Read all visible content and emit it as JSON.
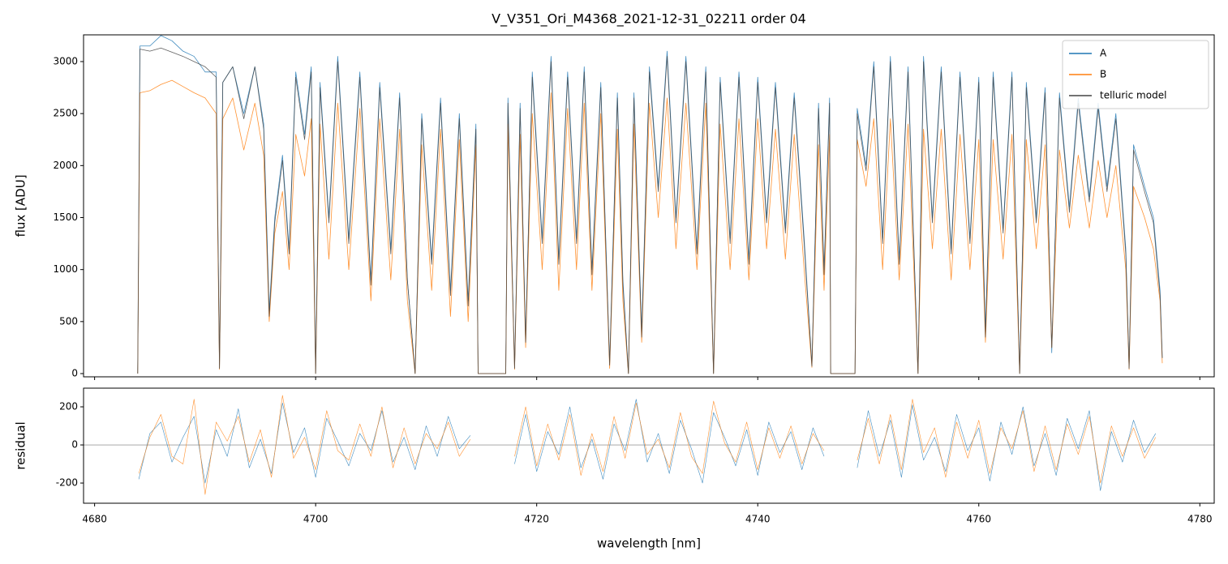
{
  "chart_data": [
    {
      "type": "line",
      "title": "V_V351_Ori_M4368_2021-12-31_02211  order 04",
      "ylabel": "flux [ADU]",
      "legend": "upper right",
      "xlim": [
        4679,
        4781.3
      ],
      "ylim": [
        -31,
        3257
      ],
      "yticks": [
        0,
        500,
        1000,
        1500,
        2000,
        2500,
        3000
      ],
      "x": [
        4683.9,
        4684.1,
        4685.0,
        4686.0,
        4687.0,
        4688.0,
        4689.0,
        4690.0,
        4691.0,
        4691.3,
        4691.6,
        4692.5,
        4693.5,
        4694.5,
        4695.3,
        4695.8,
        4696.3,
        4697.0,
        4697.6,
        4698.2,
        4699.0,
        4699.6,
        4700.0,
        4700.4,
        4701.2,
        4702.0,
        4703.0,
        4704.0,
        4705.0,
        4705.8,
        4706.8,
        4707.6,
        4708.3,
        4709.0,
        4709.6,
        4710.5,
        4711.3,
        4712.2,
        4713.0,
        4713.8,
        4714.5,
        4714.7,
        4717.2,
        4717.4,
        4718.0,
        4718.5,
        4719.0,
        4719.6,
        4720.5,
        4721.3,
        4722.0,
        4722.8,
        4723.6,
        4724.3,
        4725.0,
        4725.8,
        4726.6,
        4727.3,
        4727.8,
        4728.3,
        4728.8,
        4729.5,
        4730.2,
        4731.0,
        4731.8,
        4732.6,
        4733.5,
        4734.5,
        4735.3,
        4736.0,
        4736.6,
        4737.5,
        4738.3,
        4739.2,
        4740.0,
        4740.8,
        4741.6,
        4742.5,
        4743.3,
        4744.2,
        4744.9,
        4745.5,
        4746.0,
        4746.5,
        4746.6,
        4748.8,
        4749.0,
        4749.8,
        4750.5,
        4751.3,
        4752.0,
        4752.8,
        4753.6,
        4754.5,
        4755.0,
        4755.8,
        4756.6,
        4757.5,
        4758.3,
        4759.2,
        4760.0,
        4760.6,
        4761.3,
        4762.2,
        4763.0,
        4763.7,
        4764.3,
        4765.2,
        4766.0,
        4766.6,
        4767.3,
        4768.2,
        4769.0,
        4770.0,
        4770.8,
        4771.6,
        4772.4,
        4773.3,
        4773.6,
        4774.0,
        4775.0,
        4775.8,
        4776.4,
        4776.6
      ],
      "series": [
        {
          "name": "A",
          "color": "#1f77b4",
          "values": [
            0,
            3150,
            3150,
            3250,
            3200,
            3100,
            3050,
            2900,
            2900,
            50,
            2800,
            2950,
            2500,
            2950,
            2400,
            600,
            1500,
            2100,
            1200,
            2900,
            2300,
            2950,
            0,
            2800,
            1500,
            3050,
            1300,
            2900,
            900,
            2800,
            1200,
            2700,
            900,
            0,
            2500,
            1100,
            2650,
            800,
            2500,
            700,
            2400,
            0,
            0,
            2650,
            50,
            2600,
            300,
            2900,
            1300,
            3050,
            1100,
            2900,
            1300,
            2950,
            1000,
            2800,
            100,
            2700,
            900,
            0,
            2700,
            400,
            2950,
            1800,
            3100,
            1500,
            3050,
            1200,
            2950,
            0,
            2850,
            1300,
            2900,
            1100,
            2850,
            1500,
            2800,
            1400,
            2700,
            1300,
            80,
            2600,
            1000,
            2650,
            0,
            0,
            2550,
            2000,
            3000,
            1300,
            3050,
            1100,
            2950,
            0,
            3050,
            1500,
            2950,
            1200,
            2900,
            1300,
            2850,
            400,
            2900,
            1400,
            2900,
            0,
            2800,
            1500,
            2750,
            200,
            2700,
            1600,
            2650,
            1700,
            2600,
            1800,
            2500,
            1200,
            50,
            2200,
            1800,
            1500,
            800,
            150
          ]
        },
        {
          "name": "B",
          "color": "#ff7f0e",
          "values": [
            0,
            2700,
            2720,
            2780,
            2820,
            2760,
            2700,
            2650,
            2500,
            40,
            2450,
            2650,
            2150,
            2600,
            2100,
            500,
            1350,
            1750,
            1000,
            2300,
            1900,
            2450,
            0,
            2400,
            1100,
            2600,
            1000,
            2550,
            700,
            2450,
            900,
            2350,
            700,
            0,
            2200,
            800,
            2350,
            550,
            2250,
            500,
            2200,
            0,
            0,
            2400,
            40,
            2300,
            250,
            2500,
            1000,
            2700,
            800,
            2550,
            1000,
            2600,
            800,
            2500,
            50,
            2350,
            700,
            0,
            2400,
            300,
            2600,
            1500,
            2650,
            1200,
            2600,
            1000,
            2600,
            0,
            2400,
            1000,
            2450,
            900,
            2450,
            1200,
            2350,
            1100,
            2300,
            1000,
            60,
            2200,
            800,
            2300,
            0,
            0,
            2250,
            1800,
            2450,
            1000,
            2450,
            900,
            2400,
            0,
            2350,
            1200,
            2350,
            900,
            2300,
            1000,
            2250,
            300,
            2250,
            1100,
            2300,
            0,
            2250,
            1200,
            2200,
            250,
            2150,
            1400,
            2100,
            1400,
            2050,
            1500,
            2000,
            1000,
            40,
            1800,
            1500,
            1200,
            700,
            100
          ]
        },
        {
          "name": "telluric model",
          "color": "#444444",
          "values": [
            0,
            3120,
            3100,
            3130,
            3090,
            3050,
            3000,
            2950,
            2850,
            50,
            2800,
            2950,
            2450,
            2950,
            2350,
            550,
            1450,
            2050,
            1150,
            2850,
            2250,
            2900,
            0,
            2750,
            1450,
            3000,
            1250,
            2850,
            850,
            2750,
            1150,
            2650,
            900,
            0,
            2450,
            1050,
            2600,
            750,
            2450,
            650,
            2350,
            0,
            0,
            2600,
            50,
            2550,
            300,
            2850,
            1250,
            3000,
            1050,
            2850,
            1250,
            2900,
            950,
            2750,
            80,
            2650,
            850,
            0,
            2650,
            350,
            2900,
            1750,
            3050,
            1450,
            3000,
            1150,
            2900,
            0,
            2800,
            1250,
            2850,
            1050,
            2800,
            1450,
            2750,
            1350,
            2650,
            1250,
            70,
            2550,
            950,
            2600,
            0,
            0,
            2500,
            1950,
            2950,
            1250,
            3000,
            1050,
            2900,
            0,
            3000,
            1450,
            2900,
            1150,
            2850,
            1250,
            2800,
            350,
            2850,
            1350,
            2850,
            0,
            2750,
            1450,
            2700,
            250,
            2650,
            1550,
            2600,
            1650,
            2550,
            1750,
            2450,
            1150,
            50,
            2150,
            1750,
            1450,
            750,
            150
          ]
        }
      ]
    },
    {
      "type": "line",
      "ylabel": "residual",
      "xlabel": "wavelength [nm]",
      "reference_line": 0,
      "xlim": [
        4679,
        4781.3
      ],
      "ylim": [
        -306,
        298
      ],
      "yticks": [
        -200,
        0,
        200
      ],
      "xticks": [
        4680,
        4700,
        4720,
        4740,
        4760,
        4780
      ],
      "x": [
        4684,
        4685,
        4686,
        4687,
        4688,
        4689,
        4690,
        4691,
        4692,
        4693,
        4694,
        4695,
        4696,
        4697,
        4698,
        4699,
        4700,
        4701,
        4702,
        4703,
        4704,
        4705,
        4706,
        4707,
        4708,
        4709,
        4710,
        4711,
        4712,
        4713,
        4714,
        4715,
        4716,
        4717,
        4718,
        4719,
        4720,
        4721,
        4722,
        4723,
        4724,
        4725,
        4726,
        4727,
        4728,
        4729,
        4730,
        4731,
        4732,
        4733,
        4734,
        4735,
        4736,
        4737,
        4738,
        4739,
        4740,
        4741,
        4742,
        4743,
        4744,
        4745,
        4746,
        4747,
        4748,
        4749,
        4750,
        4751,
        4752,
        4753,
        4754,
        4755,
        4756,
        4757,
        4758,
        4759,
        4760,
        4761,
        4762,
        4763,
        4764,
        4765,
        4766,
        4767,
        4768,
        4769,
        4770,
        4771,
        4772,
        4773,
        4774,
        4775,
        4776
      ],
      "series": [
        {
          "name": "A",
          "color": "#1f77b4",
          "values": [
            -180,
            60,
            120,
            -90,
            40,
            150,
            -200,
            80,
            -60,
            190,
            -120,
            30,
            -150,
            220,
            -40,
            90,
            -170,
            140,
            20,
            -110,
            60,
            -30,
            180,
            -90,
            40,
            -130,
            100,
            -60,
            150,
            -20,
            50,
            null,
            null,
            null,
            -100,
            160,
            -140,
            70,
            -50,
            200,
            -120,
            30,
            -180,
            110,
            -30,
            240,
            -90,
            60,
            -150,
            130,
            -20,
            -200,
            170,
            40,
            -110,
            80,
            -160,
            120,
            -40,
            70,
            -130,
            90,
            -60,
            null,
            null,
            -120,
            180,
            -60,
            130,
            -170,
            210,
            -80,
            40,
            -140,
            160,
            -30,
            90,
            -190,
            120,
            -50,
            200,
            -110,
            60,
            -160,
            140,
            -20,
            180,
            -240,
            70,
            -90,
            130,
            -40,
            60
          ]
        },
        {
          "name": "B",
          "color": "#ff7f0e",
          "values": [
            -150,
            40,
            160,
            -60,
            -100,
            240,
            -260,
            120,
            20,
            150,
            -90,
            80,
            -170,
            260,
            -70,
            40,
            -130,
            180,
            -30,
            -80,
            110,
            -60,
            200,
            -120,
            90,
            -100,
            60,
            -20,
            120,
            -60,
            30,
            null,
            null,
            null,
            -60,
            200,
            -110,
            110,
            -80,
            160,
            -160,
            60,
            -140,
            150,
            -70,
            220,
            -50,
            30,
            -120,
            170,
            -60,
            -150,
            230,
            10,
            -90,
            120,
            -130,
            90,
            -70,
            100,
            -100,
            60,
            -30,
            null,
            null,
            -80,
            140,
            -100,
            160,
            -130,
            240,
            -40,
            90,
            -170,
            120,
            -70,
            130,
            -150,
            90,
            -20,
            180,
            -140,
            100,
            -130,
            110,
            -50,
            150,
            -200,
            100,
            -60,
            90,
            -70,
            40
          ]
        }
      ]
    }
  ]
}
